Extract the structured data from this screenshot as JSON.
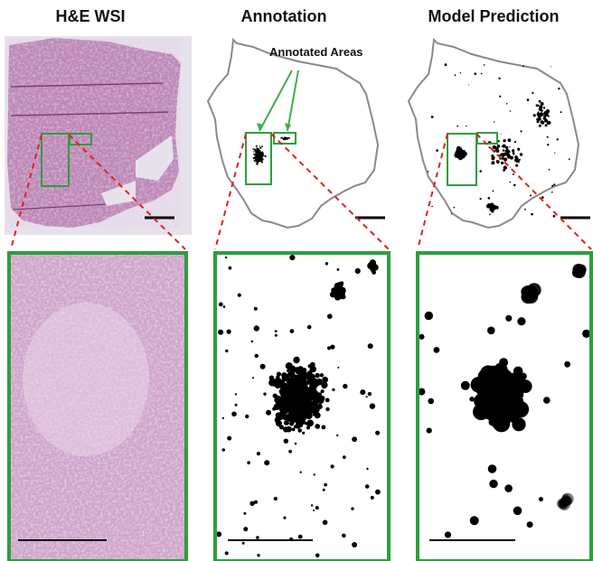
{
  "titles": {
    "col1": "H&E WSI",
    "col2": "Annotation",
    "col3": "Model Prediction"
  },
  "callout": "Annotated Areas",
  "colors": {
    "tissue_base": "#b77fb0",
    "tissue_dark": "#8e4f8a",
    "tissue_light": "#e8d2e4",
    "outline": "#8a8a8a",
    "box": "#2e9e3f",
    "dash": "#e02020",
    "arrow": "#3cb04a",
    "mask": "#000000"
  },
  "scale_bars": [
    "black",
    "black",
    "black",
    "black",
    "black",
    "black"
  ]
}
